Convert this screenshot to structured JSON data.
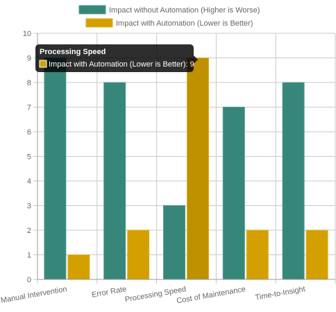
{
  "chart_data": {
    "type": "bar",
    "categories": [
      "Manual Intervention",
      "Error Rate",
      "Processing Speed",
      "Cost of Maintenance",
      "Time-to-Insight"
    ],
    "series": [
      {
        "name": "Impact without Automation (Higher is Worse)",
        "color": "#36877a",
        "values": [
          9,
          8,
          3,
          7,
          8
        ]
      },
      {
        "name": "Impact with Automation (Lower is Better)",
        "color": "#d4a000",
        "values": [
          1,
          2,
          9,
          2,
          2
        ]
      }
    ],
    "ylim": [
      0,
      10
    ],
    "yticks": [
      0,
      1,
      2,
      3,
      4,
      5,
      6,
      7,
      8,
      9,
      10
    ],
    "grid": true,
    "legend_position": "top",
    "tooltip": {
      "title": "Processing Speed",
      "series": "Impact with Automation (Lower is Better)",
      "value": 9,
      "text": "Impact with Automation (Lower is Better): 9"
    }
  }
}
